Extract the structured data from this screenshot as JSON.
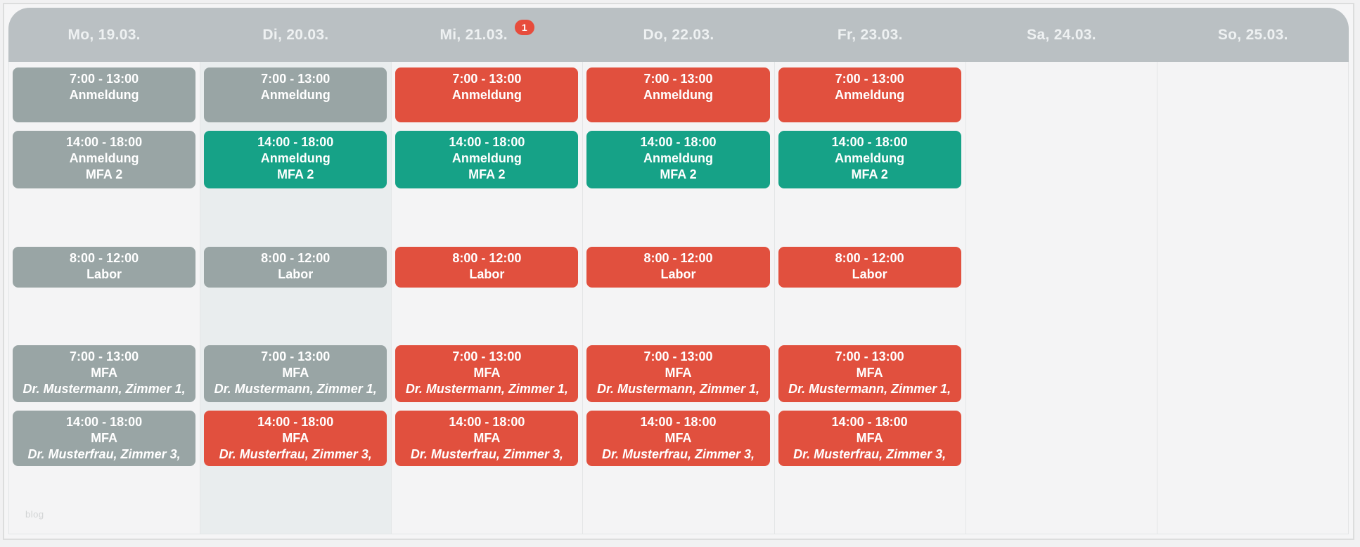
{
  "colors": {
    "header_bg": "#bac0c3",
    "gray": "#99a5a5",
    "teal": "#16a287",
    "red": "#e1503e",
    "badge_red": "#e74c3c",
    "highlight_column_bg": "#e9edee"
  },
  "watermark": "blog",
  "week": {
    "days": [
      {
        "label": "Mo, 19.03.",
        "highlight": false,
        "events": [
          {
            "row": 1,
            "color": "gray",
            "time": "7:00 - 13:00",
            "title": "Anmeldung"
          },
          {
            "row": 2,
            "color": "gray",
            "time": "14:00 - 18:00",
            "title": "Anmeldung",
            "detail": "MFA 2",
            "detail_italic": false
          },
          {
            "row": 3,
            "color": "gray",
            "time": "8:00 - 12:00",
            "title": "Labor"
          },
          {
            "row": 4,
            "color": "gray",
            "time": "7:00 - 13:00",
            "title": "MFA",
            "detail": "Dr. Mustermann, Zimmer 1,",
            "detail_italic": true
          },
          {
            "row": 5,
            "color": "gray",
            "time": "14:00 - 18:00",
            "title": "MFA",
            "detail": "Dr. Musterfrau, Zimmer 3,",
            "detail_italic": true
          }
        ]
      },
      {
        "label": "Di, 20.03.",
        "highlight": true,
        "events": [
          {
            "row": 1,
            "color": "gray",
            "time": "7:00 - 13:00",
            "title": "Anmeldung"
          },
          {
            "row": 2,
            "color": "teal",
            "time": "14:00 - 18:00",
            "title": "Anmeldung",
            "detail": "MFA 2",
            "detail_italic": false
          },
          {
            "row": 3,
            "color": "gray",
            "time": "8:00 - 12:00",
            "title": "Labor"
          },
          {
            "row": 4,
            "color": "gray",
            "time": "7:00 - 13:00",
            "title": "MFA",
            "detail": "Dr. Mustermann, Zimmer 1,",
            "detail_italic": true
          },
          {
            "row": 5,
            "color": "red",
            "time": "14:00 - 18:00",
            "title": "MFA",
            "detail": "Dr. Musterfrau, Zimmer 3,",
            "detail_italic": true
          }
        ]
      },
      {
        "label": "Mi, 21.03.",
        "badge": "1",
        "highlight": false,
        "events": [
          {
            "row": 1,
            "color": "red",
            "time": "7:00 - 13:00",
            "title": "Anmeldung"
          },
          {
            "row": 2,
            "color": "teal",
            "time": "14:00 - 18:00",
            "title": "Anmeldung",
            "detail": "MFA 2",
            "detail_italic": false
          },
          {
            "row": 3,
            "color": "red",
            "time": "8:00 - 12:00",
            "title": "Labor"
          },
          {
            "row": 4,
            "color": "red",
            "time": "7:00 - 13:00",
            "title": "MFA",
            "detail": "Dr. Mustermann, Zimmer 1,",
            "detail_italic": true
          },
          {
            "row": 5,
            "color": "red",
            "time": "14:00 - 18:00",
            "title": "MFA",
            "detail": "Dr. Musterfrau, Zimmer 3,",
            "detail_italic": true
          }
        ]
      },
      {
        "label": "Do, 22.03.",
        "highlight": false,
        "events": [
          {
            "row": 1,
            "color": "red",
            "time": "7:00 - 13:00",
            "title": "Anmeldung"
          },
          {
            "row": 2,
            "color": "teal",
            "time": "14:00 - 18:00",
            "title": "Anmeldung",
            "detail": "MFA 2",
            "detail_italic": false
          },
          {
            "row": 3,
            "color": "red",
            "time": "8:00 - 12:00",
            "title": "Labor"
          },
          {
            "row": 4,
            "color": "red",
            "time": "7:00 - 13:00",
            "title": "MFA",
            "detail": "Dr. Mustermann, Zimmer 1,",
            "detail_italic": true
          },
          {
            "row": 5,
            "color": "red",
            "time": "14:00 - 18:00",
            "title": "MFA",
            "detail": "Dr. Musterfrau, Zimmer 3,",
            "detail_italic": true
          }
        ]
      },
      {
        "label": "Fr, 23.03.",
        "highlight": false,
        "events": [
          {
            "row": 1,
            "color": "red",
            "time": "7:00 - 13:00",
            "title": "Anmeldung"
          },
          {
            "row": 2,
            "color": "teal",
            "time": "14:00 - 18:00",
            "title": "Anmeldung",
            "detail": "MFA 2",
            "detail_italic": false
          },
          {
            "row": 3,
            "color": "red",
            "time": "8:00 - 12:00",
            "title": "Labor"
          },
          {
            "row": 4,
            "color": "red",
            "time": "7:00 - 13:00",
            "title": "MFA",
            "detail": "Dr. Mustermann, Zimmer 1,",
            "detail_italic": true
          },
          {
            "row": 5,
            "color": "red",
            "time": "14:00 - 18:00",
            "title": "MFA",
            "detail": "Dr. Musterfrau, Zimmer 3,",
            "detail_italic": true
          }
        ]
      },
      {
        "label": "Sa, 24.03.",
        "highlight": false,
        "events": []
      },
      {
        "label": "So, 25.03.",
        "highlight": false,
        "events": []
      }
    ]
  }
}
